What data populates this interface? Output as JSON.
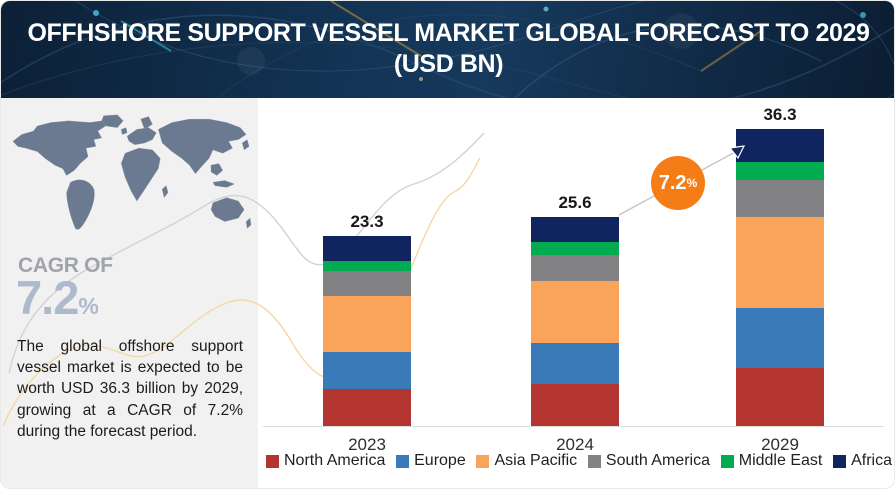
{
  "header": {
    "title_line1": "OFFHSHORE SUPPORT VESSEL MARKET GLOBAL FORECAST TO 2029",
    "title_line2": "(USD BN)"
  },
  "sidebar": {
    "cagr_label": "CAGR OF",
    "cagr_value": "7.2",
    "cagr_suffix": "%",
    "description": "The global offshore support vessel market is expected to be worth USD 36.3 billion by 2029, growing at a CAGR of 7.2% during the forecast period."
  },
  "badge": {
    "value": "7.2",
    "suffix": "%"
  },
  "colors": {
    "north_america": "#b4352f",
    "europe": "#3a7ab9",
    "asia_pacific": "#faa45b",
    "south_america": "#828285",
    "middle_east": "#00ac4f",
    "africa": "#102560",
    "badge_orange": "#f57d17",
    "header_navy": "#123252",
    "sidebar_gray": "#f1f1f2",
    "map_slate": "#6b7a90"
  },
  "chart_data": {
    "type": "bar",
    "subtype": "stacked-vertical",
    "unit": "USD BN",
    "title": "OFFHSHORE SUPPORT VESSEL MARKET GLOBAL FORECAST TO 2029 (USD BN)",
    "categories": [
      "2023",
      "2024",
      "2029"
    ],
    "totals": [
      23.3,
      25.6,
      36.3
    ],
    "total_labels": [
      "23.3",
      "25.6",
      "36.3"
    ],
    "series": [
      {
        "name": "North America",
        "color": "#b4352f",
        "values": [
          4.5,
          5.1,
          7.1
        ]
      },
      {
        "name": "Europe",
        "color": "#3a7ab9",
        "values": [
          4.6,
          5.1,
          7.3
        ]
      },
      {
        "name": "Asia Pacific",
        "color": "#faa45b",
        "values": [
          6.8,
          7.6,
          11.1
        ]
      },
      {
        "name": "South America",
        "color": "#828285",
        "values": [
          3.1,
          3.2,
          4.6
        ]
      },
      {
        "name": "Middle East",
        "color": "#00ac4f",
        "values": [
          1.2,
          1.5,
          2.1
        ]
      },
      {
        "name": "Africa",
        "color": "#102560",
        "values": [
          3.1,
          3.1,
          4.1
        ]
      }
    ],
    "annotation": {
      "text": "7.2",
      "suffix": "%",
      "meaning": "CAGR between 2024 and 2029"
    },
    "legend_position": "bottom",
    "grid": false,
    "xlabel": "",
    "ylabel": "",
    "ylim": [
      0,
      40
    ]
  }
}
